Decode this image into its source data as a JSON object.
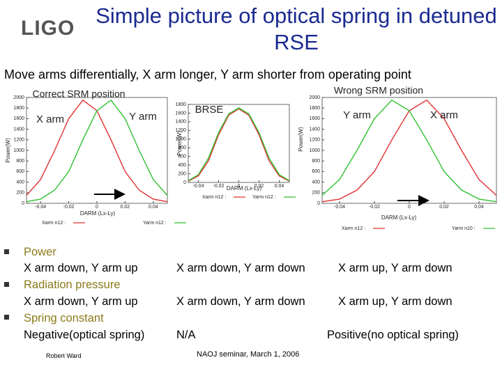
{
  "header": {
    "logo": "LIGO",
    "title": "Simple picture of optical spring in detuned RSE"
  },
  "subtitle": "Move arms differentially, X arm longer, Y arm shorter from operating point",
  "charts": [
    {
      "type": "line",
      "title": "Correct SRM position",
      "annotations": [
        "X arm",
        "Y arm"
      ],
      "ylabel": "Power(W)",
      "xlabel": "DARM (Lx-Ly)",
      "x": [
        -0.05,
        -0.04,
        -0.03,
        -0.02,
        -0.01,
        0,
        0.01,
        0.02,
        0.03,
        0.04,
        0.05
      ],
      "series": [
        {
          "name": "Xarm n12 :",
          "color": "#e03030",
          "values": [
            150,
            450,
            1000,
            1600,
            1950,
            1750,
            1200,
            600,
            250,
            80,
            30
          ]
        },
        {
          "name": "Yarm n12 :",
          "color": "#30c030",
          "values": [
            30,
            80,
            250,
            600,
            1200,
            1750,
            1950,
            1600,
            1000,
            450,
            150
          ]
        }
      ],
      "xlim": [
        -0.05,
        0.05
      ],
      "ylim": [
        0,
        2000
      ],
      "xticks": [
        -0.04,
        -0.02,
        0,
        0.02,
        0.04
      ],
      "yticks": [
        0,
        200,
        400,
        600,
        800,
        1000,
        1200,
        1400,
        1600,
        1800,
        2000
      ]
    },
    {
      "type": "line",
      "title": "BRSE",
      "annotations": [],
      "ylabel": "Power(W)",
      "xlabel": "DARM (Lx-Ly)",
      "x": [
        -0.05,
        -0.04,
        -0.03,
        -0.02,
        -0.01,
        0,
        0.01,
        0.02,
        0.03,
        0.04,
        0.05
      ],
      "series": [
        {
          "name": "Xarm n12 :",
          "color": "#e03030",
          "values": [
            30,
            150,
            500,
            1100,
            1550,
            1700,
            1550,
            1100,
            500,
            150,
            30
          ]
        },
        {
          "name": "Yarm n12 :",
          "color": "#30c030",
          "values": [
            40,
            180,
            560,
            1150,
            1580,
            1720,
            1580,
            1150,
            560,
            180,
            40
          ]
        }
      ],
      "xlim": [
        -0.05,
        0.05
      ],
      "ylim": [
        0,
        1800
      ],
      "xticks": [
        -0.04,
        -0.02,
        0,
        0.02,
        0.04
      ],
      "yticks": [
        0,
        200,
        400,
        600,
        800,
        1000,
        1200,
        1400,
        1600,
        1800
      ]
    },
    {
      "type": "line",
      "title": "Wrong SRM position",
      "annotations": [
        "Y arm",
        "X arm"
      ],
      "ylabel": "Power(W)",
      "xlabel": "DARM (Lx-Ly)",
      "x": [
        -0.05,
        -0.04,
        -0.03,
        -0.02,
        -0.01,
        0,
        0.01,
        0.02,
        0.03,
        0.04,
        0.05
      ],
      "series": [
        {
          "name": "Xarm n12 :",
          "color": "#e03030",
          "values": [
            30,
            80,
            250,
            600,
            1200,
            1750,
            1950,
            1600,
            1000,
            450,
            150
          ]
        },
        {
          "name": "Yarm n10 :",
          "color": "#30c030",
          "values": [
            150,
            450,
            1000,
            1600,
            1950,
            1750,
            1200,
            600,
            250,
            80,
            30
          ]
        }
      ],
      "xlim": [
        -0.05,
        0.05
      ],
      "ylim": [
        0,
        2000
      ],
      "xticks": [
        -0.04,
        -0.02,
        0,
        0.02,
        0.04
      ],
      "yticks": [
        0,
        200,
        400,
        600,
        800,
        1000,
        1200,
        1400,
        1600,
        1800,
        2000
      ]
    }
  ],
  "table": {
    "rows": [
      [
        "Power",
        "X arm down, Y arm up",
        "X arm down, Y arm down",
        "X arm up, Y arm down"
      ],
      [
        "Radiation pressure",
        "X arm down, Y arm up",
        "X arm down, Y arm down",
        "X arm up, Y arm down"
      ],
      [
        "Spring constant",
        "Negative(optical spring)",
        "N/A",
        "Positive(no optical spring)"
      ]
    ]
  },
  "footer": {
    "author": "Robert Ward",
    "event": "NAOJ seminar, March 1, 2006"
  }
}
